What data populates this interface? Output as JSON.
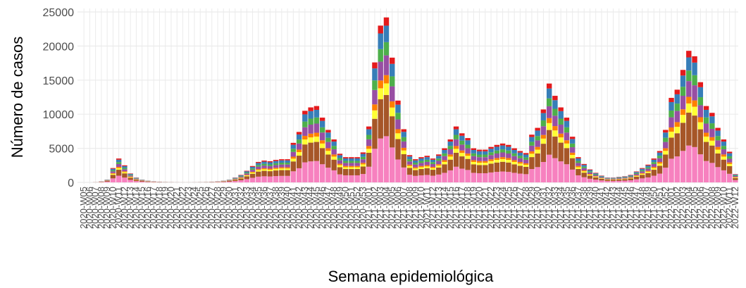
{
  "chart_data": {
    "type": "stacked_bar",
    "x_label": "Semana epidemiológica",
    "y_label": "Número de casos",
    "ylim": [
      0,
      25000
    ],
    "yticks": [
      0,
      5000,
      10000,
      15000,
      20000,
      25000
    ],
    "grid": true,
    "categories": [
      "2020-W05",
      "2020-W06",
      "2020-W07",
      "2020-W08",
      "2020-W09",
      "2020-W10",
      "2020-W11",
      "2020-W12",
      "2020-W13",
      "2020-W14",
      "2020-W15",
      "2020-W16",
      "2020-W17",
      "2020-W18",
      "2020-W19",
      "2020-W20",
      "2020-W21",
      "2020-W22",
      "2020-W23",
      "2020-W24",
      "2020-W25",
      "2020-W26",
      "2020-W27",
      "2020-W28",
      "2020-W29",
      "2020-W30",
      "2020-W31",
      "2020-W32",
      "2020-W33",
      "2020-W34",
      "2020-W35",
      "2020-W36",
      "2020-W37",
      "2020-W38",
      "2020-W39",
      "2020-W40",
      "2020-W41",
      "2020-W42",
      "2020-W43",
      "2020-W44",
      "2020-W45",
      "2020-W46",
      "2020-W47",
      "2020-W48",
      "2020-W49",
      "2020-W50",
      "2020-W51",
      "2020-W52",
      "2020-W53",
      "2021-W01",
      "2021-W02",
      "2021-W03",
      "2021-W04",
      "2021-W05",
      "2021-W06",
      "2021-W07",
      "2021-W08",
      "2021-W09",
      "2021-W10",
      "2021-W11",
      "2021-W12",
      "2021-W13",
      "2021-W14",
      "2021-W15",
      "2021-W16",
      "2021-W17",
      "2021-W18",
      "2021-W19",
      "2021-W20",
      "2021-W21",
      "2021-W22",
      "2021-W23",
      "2021-W24",
      "2021-W25",
      "2021-W26",
      "2021-W27",
      "2021-W28",
      "2021-W29",
      "2021-W30",
      "2021-W31",
      "2021-W32",
      "2021-W33",
      "2021-W34",
      "2021-W35",
      "2021-W36",
      "2021-W37",
      "2021-W38",
      "2021-W39",
      "2021-W40",
      "2021-W41",
      "2021-W42",
      "2021-W43",
      "2021-W44",
      "2021-W45",
      "2021-W46",
      "2021-W47",
      "2021-W48",
      "2021-W49",
      "2021-W50",
      "2021-W51",
      "2021-W52",
      "2022-W01",
      "2022-W02",
      "2022-W03",
      "2022-W04",
      "2022-W05",
      "2022-W06",
      "2022-W07",
      "2022-W08",
      "2022-W09",
      "2022-W10",
      "2022-W11",
      "2022-W12"
    ],
    "series": [
      {
        "color": "#f781bf",
        "values": [
          0,
          0,
          8,
          42,
          112,
          588,
          980,
          700,
          364,
          196,
          112,
          70,
          42,
          28,
          17,
          11,
          6,
          3,
          3,
          6,
          11,
          17,
          28,
          42,
          70,
          112,
          196,
          308,
          476,
          672,
          840,
          896,
          868,
          924,
          952,
          952,
          1624,
          2072,
          2940,
          3080,
          3136,
          2660,
          2156,
          1764,
          1176,
          1036,
          1036,
          1036,
          1232,
          2296,
          4928,
          6440,
          6776,
          5124,
          3360,
          2184,
          1120,
          952,
          1036,
          1092,
          980,
          1148,
          1400,
          1764,
          2296,
          2016,
          1820,
          1400,
          1344,
          1344,
          1456,
          1540,
          1596,
          1540,
          1400,
          1288,
          1204,
          1960,
          2240,
          2996,
          4060,
          3556,
          3080,
          2660,
          1876,
          1036,
          756,
          532,
          392,
          280,
          196,
          196,
          224,
          252,
          308,
          448,
          588,
          728,
          980,
          1288,
          2156,
          3472,
          3808,
          4620,
          5404,
          5180,
          4116,
          3136,
          2856,
          2240,
          1764,
          1260,
          336
        ]
      },
      {
        "color": "#a65628",
        "values": [
          0,
          0,
          8,
          38,
          100,
          525,
          875,
          625,
          325,
          175,
          100,
          63,
          38,
          25,
          15,
          10,
          5,
          3,
          3,
          5,
          10,
          15,
          25,
          38,
          63,
          100,
          175,
          275,
          425,
          600,
          750,
          800,
          775,
          825,
          850,
          850,
          1450,
          1850,
          2625,
          2750,
          2800,
          2375,
          1925,
          1575,
          1050,
          925,
          925,
          925,
          1100,
          2050,
          4400,
          5750,
          6050,
          4575,
          3000,
          1950,
          1000,
          850,
          925,
          975,
          875,
          1025,
          1250,
          1575,
          2050,
          1800,
          1625,
          1250,
          1200,
          1200,
          1300,
          1375,
          1425,
          1375,
          1250,
          1150,
          1075,
          1750,
          2000,
          2675,
          3625,
          3175,
          2750,
          2375,
          1675,
          925,
          675,
          475,
          350,
          250,
          175,
          175,
          200,
          225,
          275,
          400,
          525,
          650,
          875,
          1150,
          1925,
          3100,
          3400,
          4125,
          4825,
          4625,
          3675,
          2800,
          2550,
          2000,
          1575,
          1125,
          300
        ]
      },
      {
        "color": "#ffff33",
        "values": [
          0,
          0,
          2,
          11,
          28,
          147,
          245,
          175,
          91,
          49,
          28,
          18,
          11,
          7,
          4,
          3,
          1,
          1,
          1,
          1,
          3,
          4,
          7,
          11,
          18,
          28,
          49,
          77,
          119,
          168,
          210,
          224,
          217,
          231,
          238,
          238,
          406,
          518,
          735,
          770,
          784,
          665,
          539,
          441,
          294,
          259,
          259,
          259,
          308,
          574,
          1232,
          1610,
          1694,
          1281,
          840,
          546,
          280,
          238,
          259,
          273,
          245,
          287,
          350,
          441,
          574,
          504,
          455,
          350,
          336,
          336,
          364,
          385,
          399,
          385,
          350,
          322,
          301,
          490,
          560,
          749,
          1015,
          889,
          770,
          665,
          469,
          259,
          189,
          133,
          98,
          70,
          49,
          49,
          56,
          63,
          77,
          112,
          147,
          182,
          245,
          322,
          539,
          868,
          952,
          1155,
          1351,
          1295,
          1029,
          784,
          714,
          560,
          441,
          315,
          84
        ]
      },
      {
        "color": "#ff7f00",
        "values": [
          0,
          0,
          2,
          8,
          20,
          105,
          175,
          125,
          65,
          35,
          20,
          13,
          8,
          5,
          3,
          2,
          1,
          1,
          1,
          1,
          2,
          3,
          5,
          8,
          13,
          20,
          35,
          55,
          85,
          120,
          150,
          160,
          155,
          165,
          170,
          170,
          290,
          370,
          525,
          550,
          560,
          475,
          385,
          315,
          210,
          185,
          185,
          185,
          220,
          410,
          880,
          1150,
          1210,
          915,
          600,
          390,
          200,
          170,
          185,
          195,
          175,
          205,
          250,
          315,
          410,
          360,
          325,
          250,
          240,
          240,
          260,
          275,
          285,
          275,
          250,
          230,
          215,
          350,
          400,
          535,
          725,
          635,
          550,
          475,
          335,
          185,
          135,
          95,
          70,
          50,
          35,
          35,
          40,
          45,
          55,
          80,
          105,
          130,
          175,
          230,
          385,
          620,
          680,
          825,
          965,
          925,
          735,
          560,
          510,
          400,
          315,
          225,
          60
        ]
      },
      {
        "color": "#984ea3",
        "values": [
          0,
          0,
          4,
          18,
          48,
          252,
          420,
          300,
          156,
          84,
          48,
          30,
          18,
          12,
          7,
          5,
          2,
          1,
          1,
          2,
          5,
          7,
          12,
          18,
          30,
          48,
          84,
          132,
          204,
          288,
          360,
          384,
          372,
          396,
          408,
          408,
          696,
          888,
          1260,
          1320,
          1344,
          1140,
          924,
          756,
          504,
          444,
          444,
          444,
          528,
          984,
          2112,
          2760,
          2904,
          2196,
          1440,
          936,
          480,
          408,
          444,
          468,
          420,
          492,
          600,
          756,
          984,
          864,
          780,
          600,
          576,
          576,
          624,
          660,
          684,
          660,
          600,
          552,
          516,
          840,
          960,
          1284,
          1740,
          1524,
          1320,
          1140,
          804,
          444,
          324,
          228,
          168,
          120,
          84,
          84,
          96,
          108,
          132,
          192,
          252,
          312,
          420,
          552,
          924,
          1488,
          1632,
          1980,
          2316,
          2220,
          1764,
          1344,
          1224,
          960,
          756,
          540,
          144
        ]
      },
      {
        "color": "#4daf4a",
        "values": [
          0,
          0,
          2,
          12,
          32,
          168,
          280,
          200,
          104,
          56,
          32,
          20,
          12,
          8,
          5,
          3,
          2,
          1,
          1,
          2,
          3,
          5,
          8,
          12,
          20,
          32,
          56,
          88,
          136,
          192,
          240,
          256,
          248,
          264,
          272,
          272,
          464,
          592,
          840,
          880,
          896,
          760,
          616,
          504,
          336,
          296,
          296,
          296,
          352,
          656,
          1408,
          1840,
          1936,
          1464,
          960,
          624,
          320,
          272,
          296,
          312,
          280,
          328,
          400,
          504,
          656,
          576,
          520,
          400,
          384,
          384,
          416,
          440,
          456,
          440,
          400,
          368,
          344,
          560,
          640,
          856,
          1160,
          1016,
          880,
          760,
          536,
          296,
          216,
          152,
          112,
          80,
          56,
          56,
          64,
          72,
          88,
          128,
          168,
          208,
          280,
          368,
          616,
          992,
          1088,
          1320,
          1544,
          1480,
          1176,
          896,
          816,
          640,
          504,
          360,
          96
        ]
      },
      {
        "color": "#377eb8",
        "values": [
          0,
          0,
          3,
          15,
          40,
          210,
          350,
          250,
          130,
          70,
          40,
          25,
          15,
          10,
          6,
          4,
          2,
          1,
          1,
          2,
          4,
          6,
          10,
          15,
          25,
          40,
          70,
          110,
          170,
          240,
          300,
          320,
          310,
          330,
          340,
          340,
          580,
          740,
          1050,
          1100,
          1120,
          950,
          770,
          630,
          420,
          370,
          370,
          370,
          440,
          820,
          1760,
          2300,
          2420,
          1830,
          1200,
          780,
          400,
          340,
          370,
          390,
          350,
          410,
          500,
          630,
          820,
          720,
          650,
          500,
          480,
          480,
          520,
          550,
          570,
          550,
          500,
          460,
          430,
          700,
          800,
          1070,
          1450,
          1270,
          1100,
          950,
          670,
          370,
          270,
          190,
          140,
          100,
          70,
          70,
          80,
          90,
          110,
          160,
          210,
          260,
          350,
          460,
          770,
          1240,
          1360,
          1650,
          1930,
          1850,
          1470,
          1120,
          1020,
          800,
          630,
          450,
          120
        ]
      },
      {
        "color": "#e41a1c",
        "values": [
          0,
          0,
          2,
          8,
          20,
          105,
          175,
          125,
          65,
          35,
          20,
          13,
          8,
          5,
          3,
          2,
          1,
          1,
          1,
          1,
          2,
          3,
          5,
          8,
          13,
          20,
          35,
          55,
          85,
          120,
          150,
          160,
          155,
          165,
          170,
          170,
          290,
          370,
          525,
          550,
          560,
          475,
          385,
          315,
          210,
          185,
          185,
          185,
          220,
          410,
          880,
          1150,
          1210,
          915,
          600,
          390,
          200,
          170,
          185,
          195,
          175,
          205,
          250,
          315,
          410,
          360,
          325,
          250,
          240,
          240,
          260,
          275,
          285,
          275,
          250,
          230,
          215,
          350,
          400,
          535,
          725,
          635,
          550,
          475,
          335,
          185,
          135,
          95,
          70,
          50,
          35,
          35,
          40,
          45,
          55,
          80,
          105,
          130,
          175,
          230,
          385,
          620,
          680,
          825,
          965,
          925,
          735,
          560,
          510,
          400,
          315,
          225,
          60
        ]
      }
    ]
  }
}
